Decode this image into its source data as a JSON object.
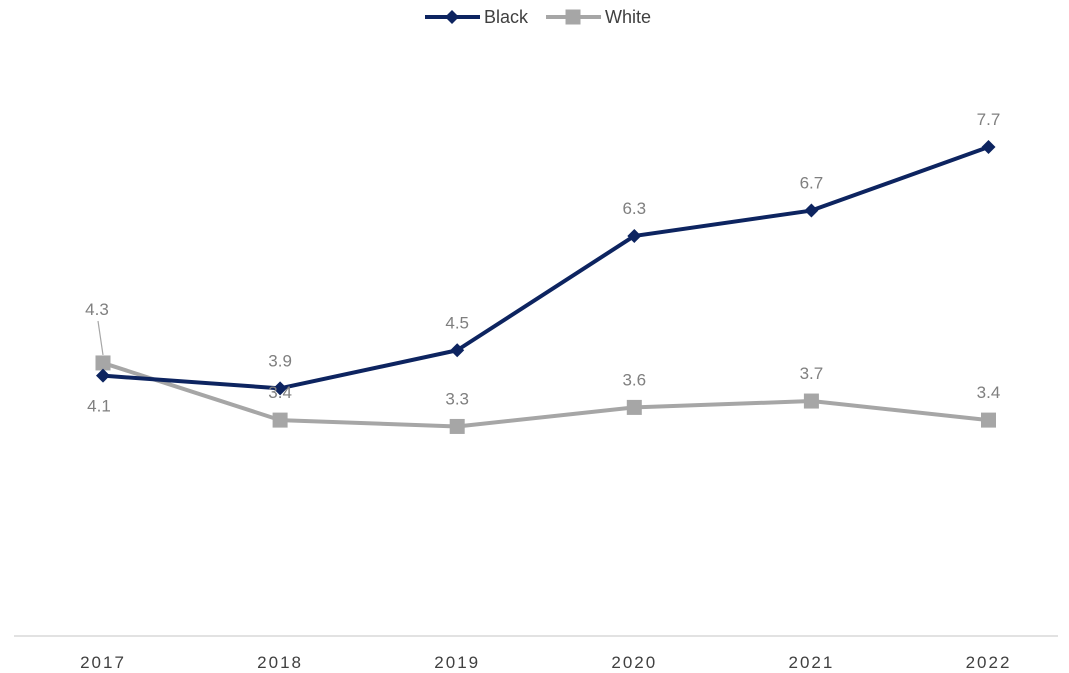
{
  "chart_data": {
    "type": "line",
    "title": "",
    "xlabel": "",
    "ylabel": "",
    "categories": [
      "2017",
      "2018",
      "2019",
      "2020",
      "2021",
      "2022"
    ],
    "series": [
      {
        "name": "Black",
        "values": [
          4.1,
          3.9,
          4.5,
          6.3,
          6.7,
          7.7
        ],
        "color": "#0d2460",
        "marker": "diamond"
      },
      {
        "name": "White",
        "values": [
          4.3,
          3.4,
          3.3,
          3.6,
          3.7,
          3.4
        ],
        "color": "#a6a6a6",
        "marker": "square"
      }
    ],
    "ylim": [
      0,
      10
    ],
    "grid": false,
    "legend": "top-center",
    "axis_color": "#d9d9d9",
    "label_color": "#7f7f7f"
  }
}
